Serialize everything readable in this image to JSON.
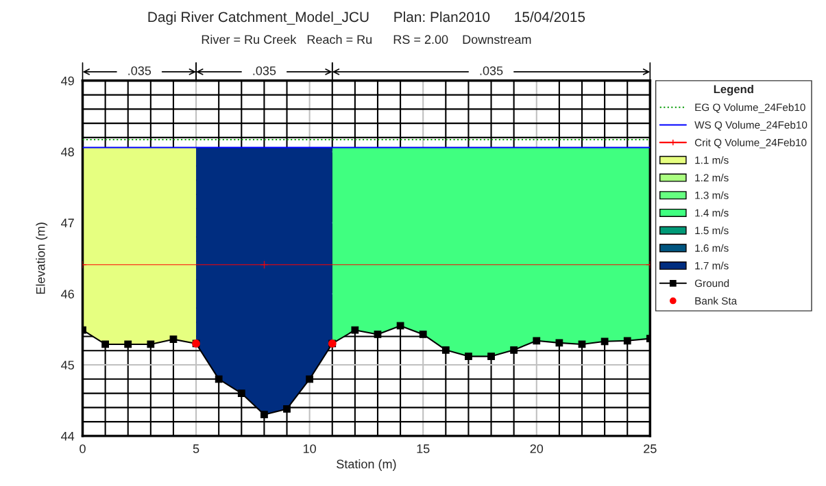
{
  "chart_data": {
    "type": "line",
    "title": "Dagi River Catchment_Model_JCU      Plan: Plan2010      15/04/2015",
    "subtitle": "River = Ru Creek   Reach = Ru      RS = 2.00    Downstream",
    "xlabel": "Station (m)",
    "ylabel": "Elevation (m)",
    "legend_title": "Legend",
    "annotations": [
      ".035",
      ".035",
      ".035"
    ],
    "xlim": [
      0,
      25
    ],
    "ylim": [
      44,
      49
    ],
    "xticks": [
      0,
      5,
      10,
      15,
      20,
      25
    ],
    "yticks": [
      44,
      45,
      46,
      47,
      48,
      49
    ],
    "grid": true,
    "legend": "right",
    "series": [
      {
        "name": "EG Q Volume_24Feb10",
        "color": "#009900",
        "line_style": "dotted",
        "marker": "none",
        "x": [
          0,
          25
        ],
        "values": [
          48.17,
          48.17
        ]
      },
      {
        "name": "WS Q Volume_24Feb10",
        "color": "#0000ff",
        "line_style": "solid",
        "marker": "none",
        "x": [
          0,
          25
        ],
        "values": [
          48.06,
          48.06
        ]
      },
      {
        "name": "Crit Q Volume_24Feb10",
        "color": "#ff0000",
        "line_style": "solid",
        "marker": "cross",
        "x": [
          0,
          8,
          25
        ],
        "values": [
          46.41,
          46.41,
          46.41
        ]
      },
      {
        "name": "1.1 m/s",
        "type": "area",
        "color": "#e6ff80",
        "x": [
          0,
          1,
          2,
          3,
          4,
          5
        ],
        "values": [
          48.06,
          48.06,
          48.06,
          48.06,
          48.06,
          48.06
        ]
      },
      {
        "name": "1.2 m/s",
        "type": "area",
        "color": "#aaff80"
      },
      {
        "name": "1.3 m/s",
        "type": "area",
        "color": "#66ff80"
      },
      {
        "name": "1.4 m/s",
        "type": "area",
        "color": "#40ff80",
        "x": [
          11,
          12,
          13,
          14,
          15,
          16,
          17,
          18,
          19,
          20,
          21,
          22,
          23,
          24,
          25
        ],
        "values": [
          48.06,
          48.06,
          48.06,
          48.06,
          48.06,
          48.06,
          48.06,
          48.06,
          48.06,
          48.06,
          48.06,
          48.06,
          48.06,
          48.06,
          48.06
        ]
      },
      {
        "name": "1.5 m/s",
        "type": "area",
        "color": "#009977"
      },
      {
        "name": "1.6 m/s",
        "type": "area",
        "color": "#005580"
      },
      {
        "name": "1.7 m/s",
        "type": "area",
        "color": "#002d80",
        "x": [
          5,
          6,
          7,
          8,
          9,
          10,
          11
        ],
        "values": [
          48.06,
          48.06,
          48.06,
          48.06,
          48.06,
          48.06,
          48.06
        ]
      },
      {
        "name": "Ground",
        "color": "#000000",
        "line_style": "solid",
        "marker": "square",
        "x": [
          0,
          1,
          2,
          3,
          4,
          5,
          6,
          7,
          8,
          9,
          10,
          11,
          12,
          13,
          14,
          15,
          16,
          17,
          18,
          19,
          20,
          21,
          22,
          23,
          24,
          25
        ],
        "values": [
          45.49,
          45.29,
          45.29,
          45.29,
          45.36,
          45.3,
          44.8,
          44.6,
          44.3,
          44.38,
          44.8,
          45.3,
          45.49,
          45.43,
          45.55,
          45.43,
          45.21,
          45.12,
          45.12,
          45.21,
          45.34,
          45.31,
          45.29,
          45.33,
          45.34,
          45.37
        ]
      },
      {
        "name": "Bank Sta",
        "type": "scatter",
        "color": "#ff0000",
        "marker": "circle",
        "x": [
          5,
          11
        ],
        "values": [
          45.3,
          45.3
        ]
      }
    ]
  }
}
